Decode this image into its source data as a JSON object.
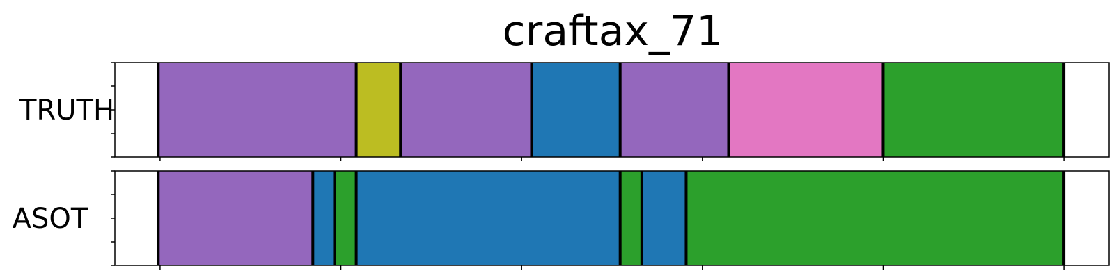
{
  "chart_data": {
    "type": "segmentation",
    "title": "craftax_71",
    "xlim": [
      0,
      1100
    ],
    "grid": false,
    "rows": [
      {
        "label": "TRUTH",
        "segments": [
          {
            "start": 0,
            "end": 48,
            "color": "#ffffff"
          },
          {
            "start": 48,
            "end": 267,
            "color": "#9467bd"
          },
          {
            "start": 267,
            "end": 316,
            "color": "#bcbd22"
          },
          {
            "start": 316,
            "end": 461,
            "color": "#9467bd"
          },
          {
            "start": 461,
            "end": 559,
            "color": "#1f77b4"
          },
          {
            "start": 559,
            "end": 679,
            "color": "#9467bd"
          },
          {
            "start": 679,
            "end": 850,
            "color": "#e377c2"
          },
          {
            "start": 850,
            "end": 1050,
            "color": "#2ca02c"
          },
          {
            "start": 1050,
            "end": 1100,
            "color": "#ffffff"
          }
        ]
      },
      {
        "label": "ASOT",
        "segments": [
          {
            "start": 0,
            "end": 48,
            "color": "#ffffff"
          },
          {
            "start": 48,
            "end": 219,
            "color": "#9467bd"
          },
          {
            "start": 219,
            "end": 243,
            "color": "#1f77b4"
          },
          {
            "start": 243,
            "end": 267,
            "color": "#2ca02c"
          },
          {
            "start": 267,
            "end": 559,
            "color": "#1f77b4"
          },
          {
            "start": 559,
            "end": 583,
            "color": "#2ca02c"
          },
          {
            "start": 583,
            "end": 632,
            "color": "#1f77b4"
          },
          {
            "start": 632,
            "end": 1050,
            "color": "#2ca02c"
          },
          {
            "start": 1050,
            "end": 1100,
            "color": "#ffffff"
          }
        ]
      }
    ],
    "x_ticks": [
      50,
      250,
      450,
      650,
      850,
      1050
    ],
    "y_tick_count": 5
  }
}
